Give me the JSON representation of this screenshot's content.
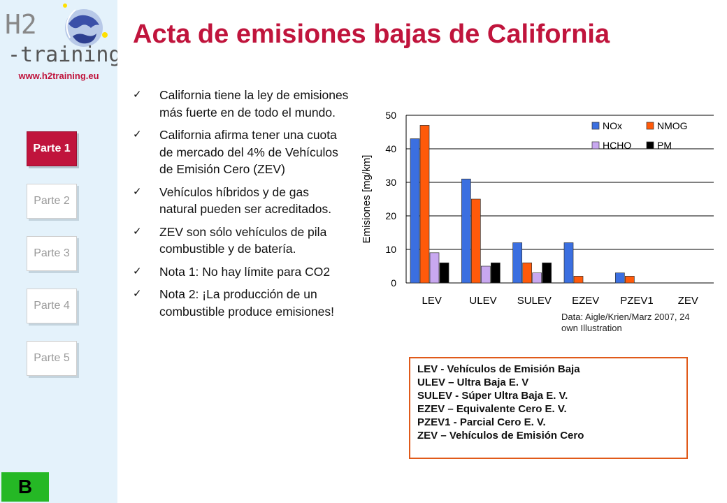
{
  "title": "Acta de emisiones bajas de California",
  "logo": {
    "line1": "H2",
    "line2": "-training",
    "url": "www.h2training.eu"
  },
  "nav": {
    "items": [
      "Parte 1",
      "Parte 2",
      "Parte 3",
      "Parte 4",
      "Parte 5"
    ],
    "active_index": 0
  },
  "badge": "B",
  "bullets": [
    "California tiene la ley de emisiones más fuerte en de todo el mundo.",
    "California afirma tener una cuota de mercado del 4% de Vehículos de Emisión Cero (ZEV)",
    "Vehículos híbridos y de gas natural pueden ser acreditados.",
    "ZEV son sólo vehículos de pila combustible y de batería.",
    "Nota 1: No hay límite para CO2",
    "Nota 2: ¡La producción de un combustible produce emisiones!"
  ],
  "chart_source": [
    "Data: Aigle/Krien/Marz 2007, 24",
    "own Illustration"
  ],
  "abbreviations": [
    "LEV - Vehículos de Emisión Baja",
    "ULEV – Ultra Baja E. V",
    "SULEV - Súper Ultra Baja E. V.",
    "EZEV – Equivalente Cero E. V.",
    "PZEV1 - Parcial Cero E. V.",
    "ZEV – Vehículos de Emisión Cero"
  ],
  "chart_data": {
    "type": "bar",
    "ylabel": "Emisiones [mg/km]",
    "ylim": [
      0,
      50
    ],
    "yticks": [
      0,
      10,
      20,
      30,
      40,
      50
    ],
    "grid": true,
    "legend_position": "top-right",
    "categories": [
      "LEV",
      "ULEV",
      "SULEV",
      "EZEV",
      "PZEV1",
      "ZEV"
    ],
    "series": [
      {
        "name": "NOx",
        "color": "#3b6fe0",
        "values": [
          43,
          31,
          12,
          12,
          3,
          0
        ]
      },
      {
        "name": "NMOG",
        "color": "#ff5a0a",
        "values": [
          47,
          25,
          6,
          2,
          2,
          0
        ]
      },
      {
        "name": "HCHO",
        "color": "#c8a8f0",
        "values": [
          9,
          5,
          3,
          0,
          0,
          0
        ]
      },
      {
        "name": "PM",
        "color": "#000000",
        "values": [
          6,
          6,
          6,
          0,
          0,
          0
        ]
      }
    ]
  }
}
